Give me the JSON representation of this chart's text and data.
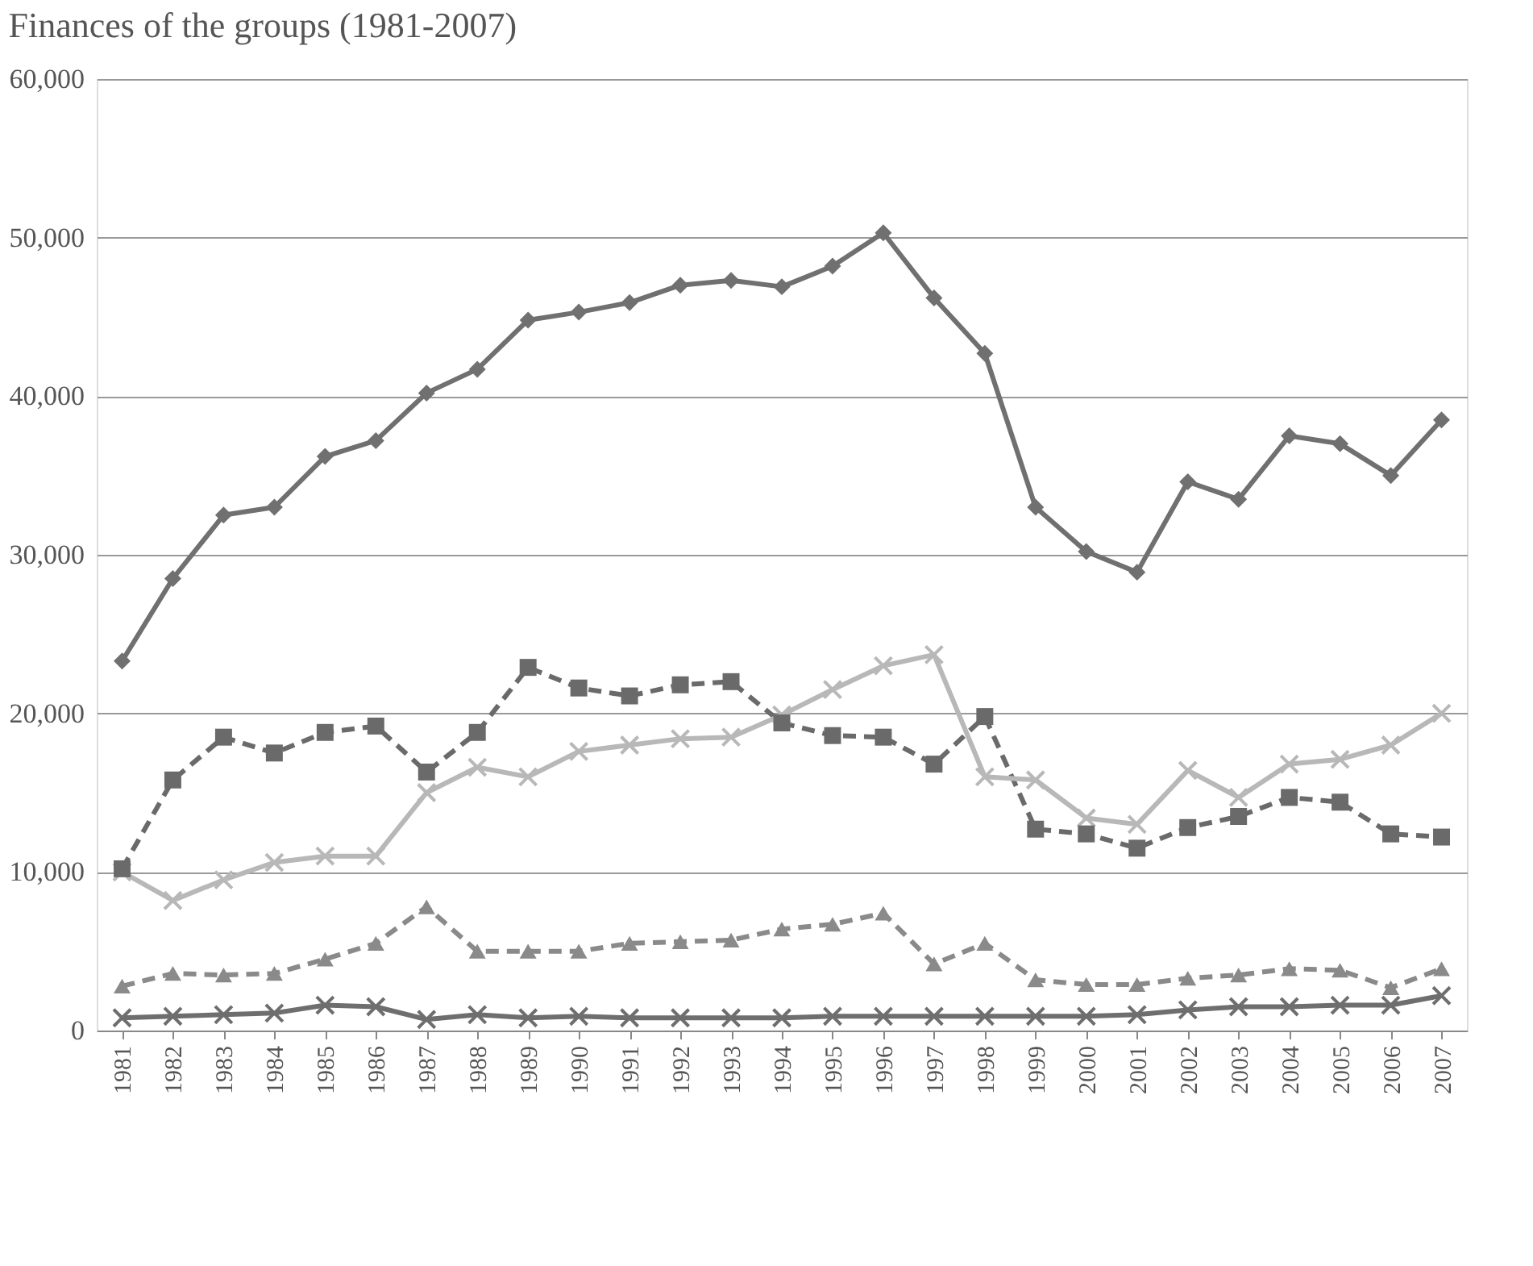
{
  "chart_data": {
    "type": "line",
    "title": "Finances of the groups (1981-2007)",
    "categories": [
      "1981",
      "1982",
      "1983",
      "1984",
      "1985",
      "1986",
      "1987",
      "1988",
      "1989",
      "1990",
      "1991",
      "1992",
      "1993",
      "1994",
      "1995",
      "1996",
      "1997",
      "1998",
      "1999",
      "2000",
      "2001",
      "2002",
      "2003",
      "2004",
      "2005",
      "2006",
      "2007"
    ],
    "ylim": [
      0,
      60000
    ],
    "yticks": [
      0,
      {
        "value": 10000,
        "label": "10,000"
      },
      {
        "value": 20000,
        "label": "20,000"
      },
      {
        "value": 30000,
        "label": "30,000"
      },
      {
        "value": 40000,
        "label": "40,000"
      },
      {
        "value": 50000,
        "label": "50,000"
      },
      {
        "value": 60000,
        "label": "60,000"
      }
    ],
    "grid": "y",
    "series": [
      {
        "color": "#707070",
        "marker": "diamond",
        "line_style": "solid",
        "values": [
          23300,
          28500,
          32500,
          33000,
          36200,
          37200,
          40200,
          41700,
          44800,
          45300,
          45900,
          47000,
          47300,
          46900,
          48200,
          50300,
          46200,
          42700,
          33000,
          30200,
          28900,
          34600,
          33500,
          37500,
          37000,
          35000,
          38500
        ]
      },
      {
        "color": "#6a6a6a",
        "marker": "square",
        "line_style": "dashed",
        "values": [
          10200,
          15800,
          18500,
          17500,
          18800,
          19200,
          16300,
          18800,
          22900,
          21600,
          21100,
          21800,
          22000,
          19400,
          18600,
          18500,
          16800,
          19800,
          12700,
          12400,
          11500,
          12800,
          13500,
          14700,
          14400,
          12400,
          12200
        ]
      },
      {
        "color": "#b8b8b8",
        "marker": "cross",
        "line_style": "solid",
        "values": [
          10000,
          8200,
          9500,
          10600,
          11000,
          11000,
          15000,
          16600,
          16000,
          17600,
          18000,
          18400,
          18500,
          19900,
          21500,
          23000,
          23700,
          16000,
          15800,
          13400,
          13000,
          16400,
          14700,
          16800,
          17100,
          18000,
          20000
        ]
      },
      {
        "color": "#8a8a8a",
        "marker": "triangle",
        "line_style": "dashed",
        "values": [
          2800,
          3600,
          3500,
          3600,
          4500,
          5500,
          7800,
          5000,
          5000,
          5000,
          5500,
          5600,
          5700,
          6400,
          6700,
          7400,
          4200,
          5500,
          3200,
          2900,
          2900,
          3300,
          3500,
          3900,
          3800,
          2700,
          3900
        ]
      },
      {
        "color": "#6e6e6e",
        "marker": "cross",
        "line_style": "solid",
        "values": [
          800,
          900,
          1000,
          1100,
          1600,
          1500,
          700,
          1000,
          800,
          900,
          800,
          800,
          800,
          800,
          900,
          900,
          900,
          900,
          900,
          900,
          1000,
          1300,
          1500,
          1500,
          1600,
          1600,
          2200
        ]
      }
    ]
  }
}
